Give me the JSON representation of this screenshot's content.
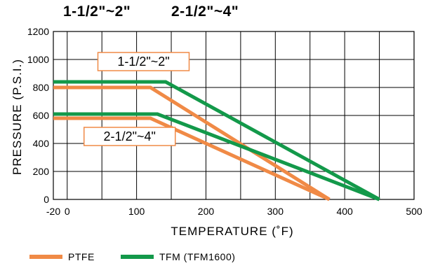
{
  "headers": {
    "left": "1-1/2\"~2\"",
    "right": "2-1/2\"~4\""
  },
  "chart_data": {
    "type": "line",
    "xlabel": "TEMPERATURE (˚F)",
    "ylabel": "PRESSURE (P.S.I.)",
    "xlim": [
      -20,
      500
    ],
    "ylim": [
      0,
      1200
    ],
    "xticks": [
      "-20",
      "0",
      "100",
      "200",
      "300",
      "400",
      "500"
    ],
    "yticks": [
      "0",
      "200",
      "400",
      "600",
      "800",
      "1000",
      "1200"
    ],
    "grid": true,
    "legend_position": "bottom",
    "series": [
      {
        "name": "PTFE",
        "group": "1-1/2\"~2\"",
        "color": "#f08a46",
        "points": [
          [
            -20,
            800
          ],
          [
            120,
            800
          ],
          [
            378,
            0
          ]
        ]
      },
      {
        "name": "PTFE",
        "group": "2-1/2\"~4\"",
        "color": "#f08a46",
        "points": [
          [
            -20,
            580
          ],
          [
            120,
            580
          ],
          [
            378,
            0
          ]
        ]
      },
      {
        "name": "TFM (TFM1600)",
        "group": "1-1/2\"~2\"",
        "color": "#13994a",
        "points": [
          [
            -20,
            840
          ],
          [
            142,
            840
          ],
          [
            450,
            0
          ]
        ]
      },
      {
        "name": "TFM (TFM1600)",
        "group": "2-1/2\"~4\"",
        "color": "#13994a",
        "points": [
          [
            -20,
            610
          ],
          [
            130,
            610
          ],
          [
            450,
            0
          ]
        ]
      }
    ],
    "annotations": [
      {
        "text": "1-1/2\"~2\"",
        "x": 110,
        "y": 985
      },
      {
        "text": "2-1/2\"~4\"",
        "x": 90,
        "y": 450
      }
    ],
    "legend": [
      {
        "label": "PTFE",
        "color": "#f08a46"
      },
      {
        "label": "TFM (TFM1600)",
        "color": "#13994a"
      }
    ]
  }
}
